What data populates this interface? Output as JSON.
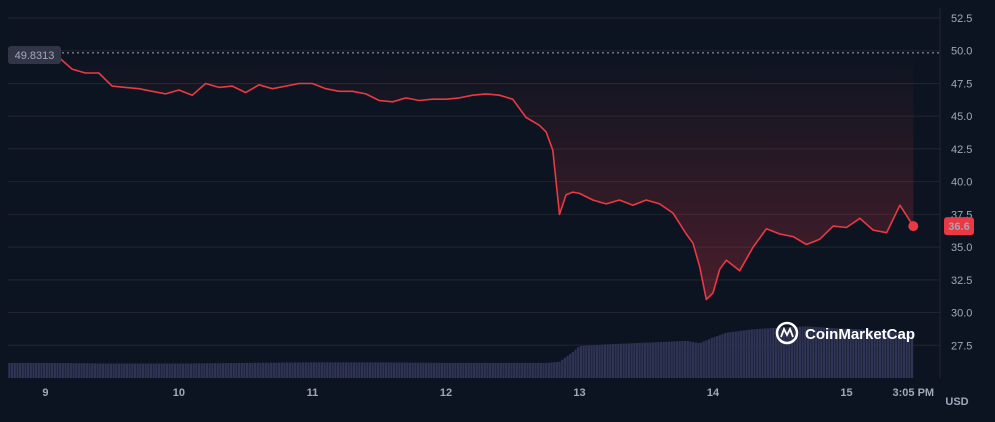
{
  "chart_data": {
    "type": "line",
    "title": "",
    "xlabel": "",
    "ylabel": "",
    "unit_label": "USD",
    "ylim": [
      25,
      52.5
    ],
    "yticks": [
      "52.5",
      "50.0",
      "47.5",
      "45.0",
      "42.5",
      "40.0",
      "37.5",
      "35.0",
      "32.5",
      "30.0",
      "27.5"
    ],
    "ytick_values": [
      52.5,
      50.0,
      47.5,
      45.0,
      42.5,
      40.0,
      37.5,
      35.0,
      32.5,
      30.0,
      27.5
    ],
    "xticks": [
      "9",
      "10",
      "11",
      "12",
      "13",
      "14",
      "15",
      "3:05 PM"
    ],
    "xtick_positions": [
      9.0,
      10.0,
      11.0,
      12.0,
      13.0,
      14.0,
      15.0,
      15.5
    ],
    "xlim": [
      8.72,
      15.7
    ],
    "reference_value": 49.8313,
    "reference_label": "49.8313",
    "current_value": 36.6,
    "current_label": "36.6",
    "watermark": "CoinMarketCap",
    "colors": {
      "line": "#ea3943",
      "background": "#0d1421",
      "grid": "#222531",
      "volume": "#2f3454",
      "label_bg": "#323546"
    },
    "series": [
      {
        "x": [
          9.0,
          9.1,
          9.2,
          9.3,
          9.4,
          9.5,
          9.6,
          9.7,
          9.8,
          9.9,
          10.0,
          10.1,
          10.2,
          10.3,
          10.4,
          10.5,
          10.6,
          10.7,
          10.8,
          10.9,
          11.0,
          11.1,
          11.2,
          11.3,
          11.4,
          11.5,
          11.6,
          11.7,
          11.8,
          11.9,
          12.0,
          12.1,
          12.2,
          12.3,
          12.4,
          12.5,
          12.6,
          12.7,
          12.75,
          12.8,
          12.85,
          12.9,
          12.95,
          13.0,
          13.1,
          13.2,
          13.3,
          13.4,
          13.5,
          13.6,
          13.7,
          13.8,
          13.85,
          13.9,
          13.95,
          14.0,
          14.05,
          14.1,
          14.2,
          14.3,
          14.4,
          14.5,
          14.6,
          14.7,
          14.8,
          14.9,
          15.0,
          15.1,
          15.2,
          15.3,
          15.4,
          15.5
        ],
        "values": [
          49.8,
          49.5,
          48.6,
          48.3,
          48.3,
          47.3,
          47.2,
          47.1,
          46.9,
          46.7,
          47.0,
          46.6,
          47.5,
          47.2,
          47.3,
          46.8,
          47.4,
          47.1,
          47.3,
          47.5,
          47.5,
          47.1,
          46.9,
          46.9,
          46.7,
          46.2,
          46.1,
          46.4,
          46.2,
          46.3,
          46.3,
          46.4,
          46.6,
          46.7,
          46.6,
          46.3,
          44.9,
          44.3,
          43.8,
          42.4,
          37.5,
          39.0,
          39.2,
          39.1,
          38.6,
          38.3,
          38.6,
          38.2,
          38.6,
          38.3,
          37.6,
          36.0,
          35.3,
          33.5,
          31.0,
          31.5,
          33.3,
          34.0,
          33.2,
          35.0,
          36.4,
          36.0,
          35.8,
          35.2,
          35.6,
          36.6,
          36.5,
          37.2,
          36.3,
          36.1,
          38.2,
          36.6
        ]
      }
    ],
    "volume": {
      "x": [
        9.0,
        9.5,
        10.0,
        10.5,
        11.0,
        11.5,
        12.0,
        12.5,
        12.75,
        12.85,
        12.95,
        13.0,
        13.2,
        13.4,
        13.6,
        13.8,
        13.9,
        14.0,
        14.1,
        14.3,
        14.5,
        14.7,
        14.9,
        15.1,
        15.3,
        15.5
      ],
      "values": [
        0.26,
        0.25,
        0.25,
        0.26,
        0.27,
        0.27,
        0.26,
        0.26,
        0.26,
        0.28,
        0.45,
        0.55,
        0.58,
        0.6,
        0.62,
        0.64,
        0.6,
        0.7,
        0.78,
        0.84,
        0.87,
        0.89,
        0.86,
        0.84,
        0.8,
        0.76
      ]
    }
  }
}
